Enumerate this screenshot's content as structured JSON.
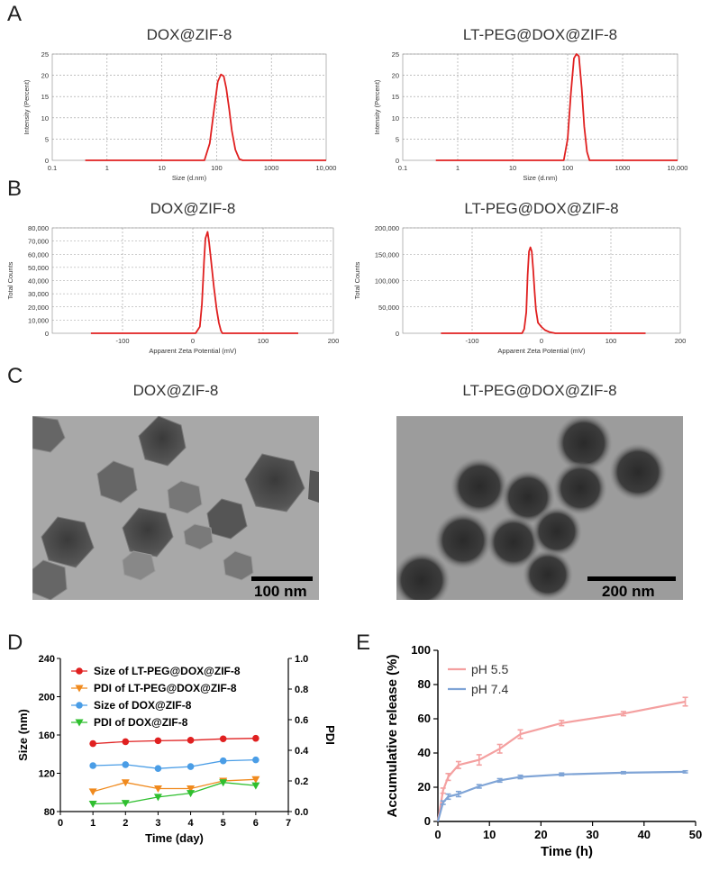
{
  "panels": {
    "A": {
      "letter": "A"
    },
    "B": {
      "letter": "B"
    },
    "C": {
      "letter": "C"
    },
    "D": {
      "letter": "D"
    },
    "E": {
      "letter": "E"
    }
  },
  "tem": {
    "left": {
      "title": "DOX@ZIF-8",
      "scale_label": "100 nm"
    },
    "right": {
      "title": "LT-PEG@DOX@ZIF-8",
      "scale_label": "200 nm"
    }
  },
  "chart_data": [
    {
      "id": "A-left",
      "type": "line",
      "title": "DOX@ZIF-8",
      "xlabel": "Size (d.nm)",
      "ylabel": "Intensity (Percent)",
      "xscale": "log",
      "xlim": [
        0.1,
        10000
      ],
      "ylim": [
        0,
        25
      ],
      "xticks": [
        0.1,
        1,
        10,
        100,
        1000,
        10000
      ],
      "xticklabels": [
        "0.1",
        "1",
        "10",
        "100",
        "1000",
        "10,000"
      ],
      "yticks": [
        0,
        5,
        10,
        15,
        20,
        25
      ],
      "yticklabels": [
        "0",
        "5",
        "10",
        "15",
        "20",
        "25"
      ],
      "series": [
        {
          "name": "DOX@ZIF-8",
          "color": "#e02020",
          "x": [
            0.4,
            60,
            75,
            90,
            105,
            120,
            135,
            150,
            170,
            190,
            220,
            260,
            300,
            10000
          ],
          "y": [
            0,
            0,
            4,
            12,
            18.5,
            20.2,
            19.8,
            17,
            12,
            7,
            2.5,
            0.3,
            0,
            0
          ]
        }
      ]
    },
    {
      "id": "A-right",
      "type": "line",
      "title": "LT-PEG@DOX@ZIF-8",
      "xlabel": "Size (d.nm)",
      "ylabel": "Intensity (Percent)",
      "xscale": "log",
      "xlim": [
        0.1,
        10000
      ],
      "ylim": [
        0,
        25
      ],
      "xticks": [
        0.1,
        1,
        10,
        100,
        1000,
        10000
      ],
      "xticklabels": [
        "0.1",
        "1",
        "10",
        "100",
        "1000",
        "10,000"
      ],
      "yticks": [
        0,
        5,
        10,
        15,
        20,
        25
      ],
      "yticklabels": [
        "0",
        "5",
        "10",
        "15",
        "20",
        "25"
      ],
      "series": [
        {
          "name": "LT-PEG@DOX@ZIF-8",
          "color": "#e02020",
          "x": [
            0.4,
            85,
            100,
            115,
            130,
            145,
            160,
            180,
            200,
            225,
            250,
            10000
          ],
          "y": [
            0,
            0,
            5,
            16,
            24,
            25,
            24.5,
            17,
            8,
            2,
            0,
            0
          ]
        }
      ]
    },
    {
      "id": "B-left",
      "type": "line",
      "title": "DOX@ZIF-8",
      "xlabel": "Apparent Zeta Potential (mV)",
      "ylabel": "Total Counts",
      "xlim": [
        -200,
        200
      ],
      "ylim": [
        0,
        80000
      ],
      "xticks": [
        -100,
        0,
        100,
        200
      ],
      "xticklabels": [
        "-100",
        "0",
        "100",
        "200"
      ],
      "yticks": [
        0,
        10000,
        20000,
        30000,
        40000,
        50000,
        60000,
        70000,
        80000
      ],
      "yticklabels": [
        "0",
        "10,000",
        "20,000",
        "30,000",
        "40,000",
        "50,000",
        "60,000",
        "70,000",
        "80,000"
      ],
      "series": [
        {
          "name": "DOX@ZIF-8",
          "color": "#e02020",
          "x": [
            -145,
            4,
            10,
            13,
            16,
            18,
            21,
            23,
            26,
            30,
            34,
            37,
            40,
            42,
            150
          ],
          "y": [
            0,
            0,
            5000,
            22000,
            55000,
            72000,
            77000,
            70000,
            55000,
            35000,
            18000,
            8000,
            2000,
            0,
            0
          ]
        }
      ]
    },
    {
      "id": "B-right",
      "type": "line",
      "title": "LT-PEG@DOX@ZIF-8",
      "xlabel": "Apparent Zeta Potential (mV)",
      "ylabel": "Total Counts",
      "xlim": [
        -200,
        200
      ],
      "ylim": [
        0,
        200000
      ],
      "xticks": [
        -100,
        0,
        100,
        200
      ],
      "xticklabels": [
        "-100",
        "0",
        "100",
        "200"
      ],
      "yticks": [
        0,
        50000,
        100000,
        150000,
        200000
      ],
      "yticklabels": [
        "0",
        "50,000",
        "100,000",
        "150,000",
        "200,000"
      ],
      "series": [
        {
          "name": "LT-PEG@DOX@ZIF-8",
          "color": "#e02020",
          "x": [
            -145,
            -28,
            -25,
            -22,
            -20,
            -18,
            -16,
            -14,
            -12,
            -10,
            -8,
            -5,
            0,
            5,
            12,
            20,
            150
          ],
          "y": [
            0,
            0,
            8000,
            40000,
            110000,
            155000,
            163000,
            155000,
            120000,
            80000,
            45000,
            20000,
            12000,
            6000,
            2000,
            0,
            0
          ]
        }
      ]
    },
    {
      "id": "D",
      "type": "line",
      "xlabel": "Time (day)",
      "ylabel": "Size (nm)",
      "y2label": "PDI",
      "xlim": [
        0,
        7
      ],
      "ylim": [
        80,
        240
      ],
      "y2lim": [
        0.0,
        1.0
      ],
      "xticks": [
        0,
        1,
        2,
        3,
        4,
        5,
        6,
        7
      ],
      "xticklabels": [
        "0",
        "1",
        "2",
        "3",
        "4",
        "5",
        "6",
        "7"
      ],
      "yticks": [
        80,
        120,
        160,
        200,
        240
      ],
      "yticklabels": [
        "80",
        "120",
        "160",
        "200",
        "240"
      ],
      "y2ticks": [
        0,
        0.2,
        0.4,
        0.6,
        0.8,
        1.0
      ],
      "y2ticklabels": [
        "0.0",
        "0.2",
        "0.4",
        "0.6",
        "0.8",
        "1.0"
      ],
      "series": [
        {
          "name": "Size of LT-PEG@DOX@ZIF-8",
          "axis": "left",
          "marker": "circle",
          "color": "#e02020",
          "x": [
            1,
            2,
            3,
            4,
            5,
            6
          ],
          "y": [
            151,
            153,
            154,
            154.5,
            156,
            156.5
          ]
        },
        {
          "name": "PDI of LT-PEG@DOX@ZIF-8",
          "axis": "right",
          "marker": "triangle",
          "color": "#f08a1e",
          "x": [
            1,
            2,
            3,
            4,
            5,
            6
          ],
          "y": [
            0.13,
            0.19,
            0.15,
            0.15,
            0.2,
            0.21
          ]
        },
        {
          "name": "Size of DOX@ZIF-8",
          "axis": "left",
          "marker": "circle",
          "color": "#4a9de6",
          "x": [
            1,
            2,
            3,
            4,
            5,
            6
          ],
          "y": [
            128,
            129,
            125,
            127,
            133,
            134
          ]
        },
        {
          "name": "PDI of DOX@ZIF-8",
          "axis": "right",
          "marker": "triangle",
          "color": "#2fbf2f",
          "x": [
            1,
            2,
            3,
            4,
            5,
            6
          ],
          "y": [
            0.05,
            0.055,
            0.095,
            0.12,
            0.19,
            0.17
          ]
        }
      ]
    },
    {
      "id": "E",
      "type": "line",
      "xlabel": "Time (h)",
      "ylabel": "Accumulative release (%)",
      "xlim": [
        0,
        50
      ],
      "ylim": [
        0,
        100
      ],
      "xticks": [
        0,
        10,
        20,
        30,
        40,
        50
      ],
      "xticklabels": [
        "0",
        "10",
        "20",
        "30",
        "40",
        "50"
      ],
      "yticks": [
        0,
        20,
        40,
        60,
        80,
        100
      ],
      "yticklabels": [
        "0",
        "20",
        "40",
        "60",
        "80",
        "100"
      ],
      "series": [
        {
          "name": "pH 5.5",
          "color": "#f4a0a0",
          "x": [
            0,
            1,
            2,
            4,
            8,
            12,
            16,
            24,
            36,
            48
          ],
          "y": [
            0,
            18,
            26,
            33,
            36,
            42.5,
            51,
            57.5,
            63,
            70
          ],
          "err": [
            0,
            1.5,
            2,
            2,
            3,
            2.5,
            2.5,
            1.5,
            1.2,
            2.5
          ]
        },
        {
          "name": "pH 7.4",
          "color": "#7fa4d6",
          "x": [
            0,
            1,
            2,
            4,
            8,
            12,
            16,
            24,
            36,
            48
          ],
          "y": [
            0,
            11,
            14.5,
            16,
            20.5,
            24,
            26,
            27.5,
            28.5,
            29
          ],
          "err": [
            0,
            1,
            1.5,
            1.5,
            1,
            1,
            1,
            0.8,
            0.6,
            0.6
          ]
        }
      ]
    }
  ]
}
